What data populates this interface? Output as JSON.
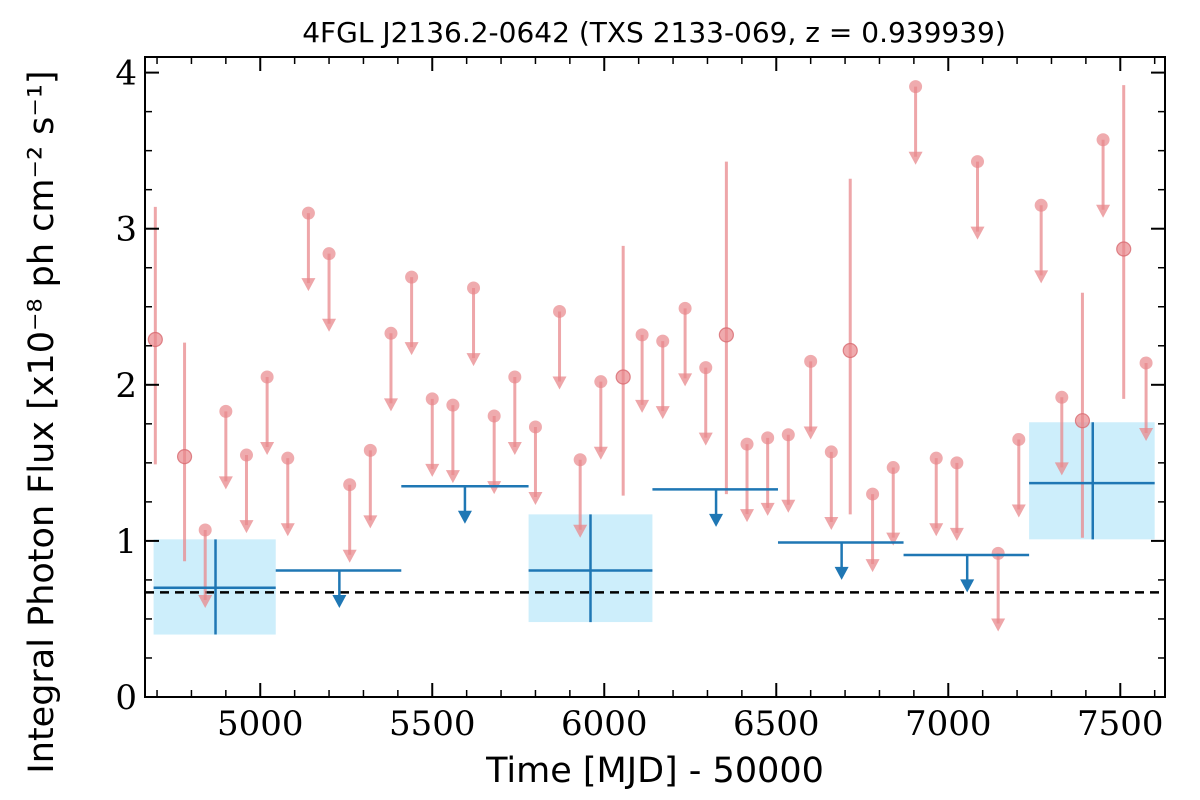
{
  "chart_data": {
    "type": "scatter",
    "title": "4FGL J2136.2-0642 (TXS 2133-069, z = 0.939939)",
    "xlabel": "Time [MJD] - 50000",
    "ylabel": "Integral Photon Flux [x10⁻⁸ ph cm⁻² s⁻¹]",
    "xlim": [
      4665,
      7630
    ],
    "ylim": [
      0,
      4.1
    ],
    "xticks": [
      5000,
      5500,
      6000,
      6500,
      7000,
      7500
    ],
    "yticks": [
      0,
      1,
      2,
      3,
      4
    ],
    "grid": false,
    "baseline": 0.67,
    "colors": {
      "short_bins": "#e8888c",
      "long_bins": "#1f77b4",
      "long_bins_band": "#cdeefb",
      "baseline": "#000000"
    },
    "short_bin_detections": [
      {
        "x": 4695,
        "y": 2.29,
        "ylo": 1.49,
        "yhi": 3.14
      },
      {
        "x": 4780,
        "y": 1.54,
        "ylo": 0.87,
        "yhi": 2.27
      },
      {
        "x": 6055,
        "y": 2.05,
        "ylo": 1.29,
        "yhi": 2.89
      },
      {
        "x": 6355,
        "y": 2.32,
        "ylo": 1.3,
        "yhi": 3.43
      },
      {
        "x": 6715,
        "y": 2.22,
        "ylo": 1.17,
        "yhi": 3.32
      },
      {
        "x": 7390,
        "y": 1.77,
        "ylo": 1.02,
        "yhi": 2.59
      },
      {
        "x": 7510,
        "y": 2.87,
        "ylo": 1.91,
        "yhi": 3.92
      }
    ],
    "short_bin_upper_limits": [
      {
        "x": 4840,
        "y": 1.07
      },
      {
        "x": 4900,
        "y": 1.83
      },
      {
        "x": 4960,
        "y": 1.55
      },
      {
        "x": 5020,
        "y": 2.05
      },
      {
        "x": 5080,
        "y": 1.53
      },
      {
        "x": 5140,
        "y": 3.1
      },
      {
        "x": 5200,
        "y": 2.84
      },
      {
        "x": 5260,
        "y": 1.36
      },
      {
        "x": 5320,
        "y": 1.58
      },
      {
        "x": 5380,
        "y": 2.33
      },
      {
        "x": 5440,
        "y": 2.69
      },
      {
        "x": 5500,
        "y": 1.91
      },
      {
        "x": 5560,
        "y": 1.87
      },
      {
        "x": 5620,
        "y": 2.62
      },
      {
        "x": 5680,
        "y": 1.8
      },
      {
        "x": 5740,
        "y": 2.05
      },
      {
        "x": 5800,
        "y": 1.73
      },
      {
        "x": 5870,
        "y": 2.47
      },
      {
        "x": 5930,
        "y": 1.52
      },
      {
        "x": 5990,
        "y": 2.02
      },
      {
        "x": 6110,
        "y": 2.32
      },
      {
        "x": 6170,
        "y": 2.28
      },
      {
        "x": 6235,
        "y": 2.49
      },
      {
        "x": 6295,
        "y": 2.11
      },
      {
        "x": 6415,
        "y": 1.62
      },
      {
        "x": 6475,
        "y": 1.66
      },
      {
        "x": 6535,
        "y": 1.68
      },
      {
        "x": 6600,
        "y": 2.15
      },
      {
        "x": 6660,
        "y": 1.57
      },
      {
        "x": 6780,
        "y": 1.3
      },
      {
        "x": 6840,
        "y": 1.47
      },
      {
        "x": 6905,
        "y": 3.91
      },
      {
        "x": 6965,
        "y": 1.53
      },
      {
        "x": 7025,
        "y": 1.5
      },
      {
        "x": 7085,
        "y": 3.43
      },
      {
        "x": 7145,
        "y": 0.92
      },
      {
        "x": 7205,
        "y": 1.65
      },
      {
        "x": 7270,
        "y": 3.15
      },
      {
        "x": 7330,
        "y": 1.92
      },
      {
        "x": 7450,
        "y": 3.57
      },
      {
        "x": 7575,
        "y": 2.14
      }
    ],
    "long_bin_detections": [
      {
        "x": 4870,
        "xlo": 4690,
        "xhi": 5045,
        "y": 0.7,
        "ylo": 0.4,
        "yhi": 1.01
      },
      {
        "x": 5960,
        "xlo": 5780,
        "xhi": 6140,
        "y": 0.81,
        "ylo": 0.48,
        "yhi": 1.17
      },
      {
        "x": 7420,
        "xlo": 7235,
        "xhi": 7600,
        "y": 1.37,
        "ylo": 1.01,
        "yhi": 1.76
      }
    ],
    "long_bin_upper_limits": [
      {
        "x": 5230,
        "xlo": 5045,
        "xhi": 5410,
        "y": 0.81
      },
      {
        "x": 5595,
        "xlo": 5410,
        "xhi": 5780,
        "y": 1.35
      },
      {
        "x": 6325,
        "xlo": 6140,
        "xhi": 6505,
        "y": 1.33
      },
      {
        "x": 6690,
        "xlo": 6505,
        "xhi": 6870,
        "y": 0.99
      },
      {
        "x": 7055,
        "xlo": 6870,
        "xhi": 7235,
        "y": 0.91
      }
    ]
  }
}
